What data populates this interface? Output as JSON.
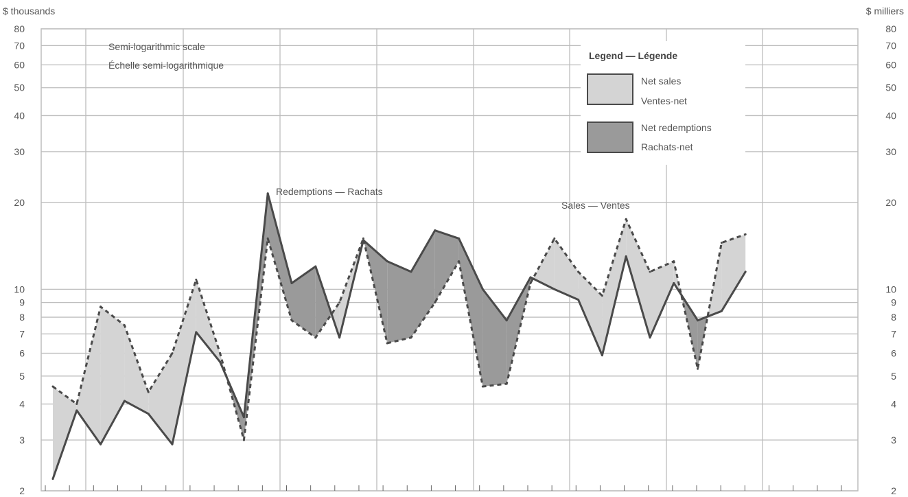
{
  "chart_data": {
    "type": "area",
    "scale": "semi-logarithmic",
    "ylim": [
      2,
      80
    ],
    "yticks": [
      2,
      3,
      4,
      5,
      6,
      7,
      8,
      9,
      10,
      20,
      30,
      40,
      50,
      60,
      70,
      80
    ],
    "y_unit_left": "$ thousands",
    "y_unit_right": "$ milliers",
    "scale_note": [
      "Semi-logarithmic scale",
      "Échelle semi-logarithmique"
    ],
    "x_count": 30,
    "series": [
      {
        "name": "Sales — Ventes",
        "style": "dashed",
        "values": [
          4.6,
          4.0,
          8.7,
          7.5,
          4.4,
          6.0,
          10.8,
          6.0,
          3.0,
          15.0,
          7.8,
          6.8,
          9.0,
          15.0,
          6.5,
          6.8,
          9.0,
          12.5,
          4.6,
          4.7,
          10.5,
          15.0,
          11.5,
          9.5,
          17.5,
          11.5,
          12.5,
          5.3,
          14.5,
          15.5
        ]
      },
      {
        "name": "Redemptions — Rachats",
        "style": "solid",
        "values": [
          2.2,
          3.8,
          2.9,
          4.1,
          3.7,
          2.9,
          7.1,
          5.6,
          3.6,
          21.5,
          10.5,
          12.0,
          6.8,
          14.8,
          12.5,
          11.5,
          16.0,
          15.0,
          10.0,
          7.8,
          11.0,
          10.0,
          9.2,
          5.9,
          13.0,
          6.8,
          10.5,
          7.8,
          8.4,
          11.5
        ]
      }
    ],
    "annotations": [
      "Redemptions — Rachats",
      "Sales — Ventes"
    ],
    "legend": {
      "title": "Legend — Légende",
      "placement": "top-right",
      "items": [
        {
          "label1": "Net sales",
          "label2": "Ventes-net",
          "color": "#d4d4d4"
        },
        {
          "label1": "Net redemptions",
          "label2": "Rachats-net",
          "color": "#9a9a9a"
        }
      ]
    },
    "colors": {
      "net_sales": "#d4d4d4",
      "net_redemptions": "#9a9a9a",
      "line": "#4a4a4a",
      "grid": "#bdbdbd"
    }
  }
}
